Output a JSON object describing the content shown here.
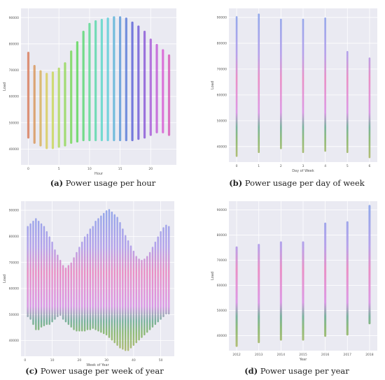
{
  "chart_data": [
    {
      "id": "a",
      "type": "scatter",
      "caption_letter": "(a)",
      "caption_text": "Power usage per hour",
      "xlabel": "Hour",
      "ylabel": "Load",
      "xlim": [
        -1.2,
        24.2
      ],
      "ylim": [
        34000,
        93500
      ],
      "xticks": [
        0,
        5,
        10,
        15,
        20
      ],
      "yticks": [
        40000,
        50000,
        60000,
        70000,
        80000,
        90000
      ],
      "x": [
        0,
        1,
        2,
        3,
        4,
        5,
        6,
        7,
        8,
        9,
        10,
        11,
        12,
        13,
        14,
        15,
        16,
        17,
        18,
        19,
        20,
        21,
        22,
        23
      ],
      "y_min": [
        44000,
        42000,
        41000,
        40000,
        40000,
        40500,
        41000,
        42000,
        42500,
        43000,
        43000,
        43000,
        43000,
        43000,
        43000,
        43000,
        43000,
        43000,
        43500,
        44000,
        45000,
        46000,
        46000,
        45000
      ],
      "y_max": [
        77000,
        72000,
        70000,
        69000,
        69500,
        71000,
        73000,
        77500,
        81000,
        85000,
        88000,
        89000,
        89500,
        90000,
        90500,
        90500,
        90000,
        88500,
        87000,
        85000,
        82000,
        80000,
        78000,
        76000
      ],
      "hue": "rainbow"
    },
    {
      "id": "b",
      "type": "scatter",
      "caption_letter": "(b)",
      "caption_text": "Power usage per day of week",
      "xlabel": "Day of Week",
      "ylabel": "Load",
      "xlim": [
        -0.35,
        6.35
      ],
      "ylim": [
        34000,
        93500
      ],
      "xticks": [
        0,
        1,
        2,
        3,
        4,
        5,
        6
      ],
      "yticks": [
        40000,
        50000,
        60000,
        70000,
        80000,
        90000
      ],
      "x": [
        0,
        1,
        2,
        3,
        4,
        5,
        6
      ],
      "y_min": [
        36000,
        37500,
        39000,
        37500,
        38000,
        37500,
        35500
      ],
      "y_max": [
        90500,
        91500,
        89500,
        89500,
        90000,
        77000,
        74500
      ],
      "hue": "by-load"
    },
    {
      "id": "c",
      "type": "scatter",
      "caption_letter": "(c)",
      "caption_text": "Power usage per week of year",
      "xlabel": "Week of Year",
      "ylabel": "Load",
      "xlim": [
        -1.5,
        55
      ],
      "ylim": [
        34000,
        93500
      ],
      "xticks": [
        0,
        10,
        20,
        30,
        40,
        50
      ],
      "yticks": [
        40000,
        50000,
        60000,
        70000,
        80000,
        90000
      ],
      "x": [
        1,
        2,
        3,
        4,
        5,
        6,
        7,
        8,
        9,
        10,
        11,
        12,
        13,
        14,
        15,
        16,
        17,
        18,
        19,
        20,
        21,
        22,
        23,
        24,
        25,
        26,
        27,
        28,
        29,
        30,
        31,
        32,
        33,
        34,
        35,
        36,
        37,
        38,
        39,
        40,
        41,
        42,
        43,
        44,
        45,
        46,
        47,
        48,
        49,
        50,
        51,
        52,
        53
      ],
      "y_min": [
        49000,
        48000,
        46000,
        44000,
        44000,
        45000,
        45500,
        46000,
        46000,
        47000,
        48000,
        49000,
        49500,
        48000,
        47000,
        46000,
        45000,
        44000,
        43500,
        43500,
        43500,
        43500,
        44000,
        44000,
        44500,
        44000,
        43500,
        43000,
        42500,
        42000,
        41000,
        40000,
        39000,
        38000,
        37000,
        36500,
        36000,
        36000,
        37000,
        38000,
        39000,
        40000,
        41000,
        42000,
        43000,
        44000,
        45000,
        46000,
        47000,
        48000,
        49000,
        50000,
        50000
      ],
      "y_max": [
        84000,
        85000,
        86000,
        87000,
        86000,
        85000,
        84000,
        82000,
        80000,
        78000,
        75000,
        73000,
        71000,
        69000,
        68000,
        69000,
        70000,
        72000,
        74000,
        76000,
        78000,
        80000,
        81000,
        83000,
        84000,
        86000,
        87000,
        88000,
        89000,
        90000,
        90500,
        89500,
        88500,
        87500,
        85500,
        83000,
        80500,
        78500,
        76500,
        74500,
        72500,
        71500,
        71000,
        71500,
        72500,
        74000,
        76000,
        78000,
        80000,
        82000,
        83500,
        84500,
        84000
      ],
      "hue": "by-load"
    },
    {
      "id": "d",
      "type": "scatter",
      "caption_letter": "(d)",
      "caption_text": "Power usage per year",
      "xlabel": "Year",
      "ylabel": "Load",
      "xlim": [
        2011.65,
        2018.35
      ],
      "ylim": [
        34000,
        93500
      ],
      "xticks": [
        2012,
        2013,
        2014,
        2015,
        2016,
        2017,
        2018
      ],
      "yticks": [
        40000,
        50000,
        60000,
        70000,
        80000,
        90000
      ],
      "x": [
        2012,
        2013,
        2014,
        2015,
        2016,
        2017,
        2018
      ],
      "y_min": [
        35500,
        37000,
        38000,
        38000,
        39500,
        40000,
        44500
      ],
      "y_max": [
        75500,
        76500,
        77500,
        77500,
        85000,
        85500,
        92000
      ],
      "hue": "by-load"
    }
  ]
}
